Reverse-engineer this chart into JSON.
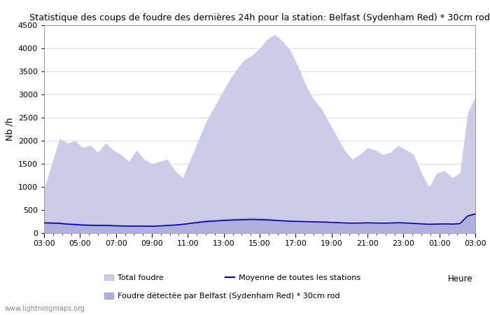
{
  "title": "Statistique des coups de foudre des dernières 24h pour la station: Belfast (Sydenham Red) * 30cm rod",
  "ylabel": "Nb /h",
  "xlabel": "Heure",
  "watermark": "www.lightningmaps.org",
  "xticks_labels": [
    "03:00",
    "05:00",
    "07:00",
    "09:00",
    "11:00",
    "13:00",
    "15:00",
    "17:00",
    "19:00",
    "21:00",
    "23:00",
    "01:00",
    "03:00"
  ],
  "xticks_positions": [
    0,
    2,
    4,
    6,
    8,
    10,
    12,
    14,
    16,
    18,
    20,
    22,
    24
  ],
  "ylim": [
    0,
    4500
  ],
  "yticks": [
    0,
    500,
    1000,
    1500,
    2000,
    2500,
    3000,
    3500,
    4000,
    4500
  ],
  "legend_total": "Total foudre",
  "legend_station": "Foudre détectée par Belfast (Sydenham Red) * 30cm rod",
  "legend_moyenne": "Moyenne de toutes les stations",
  "color_total_fill": "#cccce8",
  "color_station_fill": "#b0b0dd",
  "color_moyenne": "#0000bb",
  "total_foudre": [
    950,
    1500,
    2050,
    1950,
    2000,
    1850,
    1900,
    1750,
    1950,
    1800,
    1700,
    1550,
    1800,
    1600,
    1500,
    1550,
    1600,
    1350,
    1200,
    1600,
    2000,
    2400,
    2700,
    3000,
    3300,
    3550,
    3750,
    3850,
    4000,
    4200,
    4300,
    4150,
    3950,
    3600,
    3200,
    2900,
    2700,
    2400,
    2100,
    1800,
    1600,
    1700,
    1850,
    1800,
    1700,
    1750,
    1900,
    1800,
    1700,
    1300,
    1000,
    1300,
    1350,
    1200,
    1300,
    2600,
    2950
  ],
  "station_foudre": [
    250,
    265,
    250,
    230,
    220,
    210,
    200,
    195,
    200,
    190,
    185,
    175,
    180,
    175,
    170,
    175,
    185,
    195,
    210,
    240,
    270,
    290,
    300,
    310,
    320,
    330,
    340,
    345,
    340,
    330,
    310,
    290,
    280,
    270,
    265,
    260,
    255,
    250,
    240,
    230,
    225,
    230,
    235,
    230,
    225,
    230,
    240,
    230,
    220,
    210,
    200,
    205,
    215,
    210,
    220,
    400,
    450
  ],
  "moyenne": [
    220,
    215,
    210,
    195,
    185,
    175,
    170,
    165,
    165,
    160,
    155,
    150,
    152,
    150,
    148,
    155,
    165,
    175,
    190,
    210,
    230,
    250,
    260,
    270,
    280,
    285,
    290,
    295,
    290,
    285,
    275,
    265,
    258,
    252,
    248,
    245,
    240,
    235,
    228,
    220,
    215,
    218,
    222,
    218,
    215,
    218,
    225,
    218,
    210,
    200,
    192,
    195,
    200,
    195,
    205,
    370,
    415
  ]
}
